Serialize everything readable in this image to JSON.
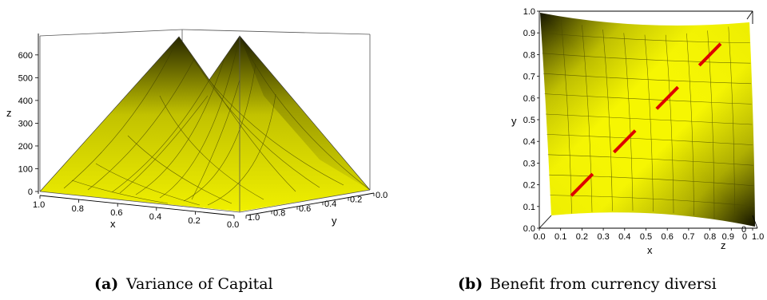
{
  "figure": {
    "panels": [
      {
        "label": "(a)",
        "caption": "Variance of Capital"
      },
      {
        "label": "(b)",
        "caption": "Benefit from currency diversi"
      }
    ]
  },
  "chart_data": [
    {
      "type": "surface3d",
      "title": "",
      "xlabel": "x",
      "ylabel": "y",
      "zlabel": "z",
      "x_ticks": [
        "1.0",
        "0.8",
        "0.6",
        "0.4",
        "0.2",
        "0.0"
      ],
      "y_ticks": [
        "1.0",
        "0.8",
        "0.6",
        "0.4",
        "0.2",
        "0.0"
      ],
      "z_ticks": [
        "0",
        "100",
        "200",
        "300",
        "400",
        "500",
        "600"
      ],
      "xlim": [
        0,
        1
      ],
      "ylim": [
        0,
        1
      ],
      "zlim": [
        0,
        680
      ],
      "surface_color": "#e8e800",
      "shadow_color": "#2a2a00",
      "peaks": [
        {
          "x": 0.5,
          "y": 0.0,
          "z": 620
        },
        {
          "x": 0.0,
          "y": 0.5,
          "z": 620
        }
      ]
    },
    {
      "type": "surface3d-top",
      "title": "",
      "xlabel": "x",
      "ylabel": "y",
      "zlabel": "z",
      "x_ticks": [
        "0.0",
        "0.1",
        "0.2",
        "0.3",
        "0.4",
        "0.5",
        "0.6",
        "0.7",
        "0.8",
        "0.9",
        "1.0"
      ],
      "y_ticks": [
        "0.0",
        "0.1",
        "0.2",
        "0.3",
        "0.4",
        "0.5",
        "0.6",
        "0.7",
        "0.8",
        "0.9",
        "1.0"
      ],
      "xlim": [
        0,
        1
      ],
      "ylim": [
        0,
        1
      ],
      "surface_color": "#f4f400",
      "shadow_color": "#111100",
      "highlight_color": "#dd0000",
      "highlight_segments": [
        {
          "x": [
            0.15,
            0.25
          ],
          "y": [
            0.15,
            0.25
          ]
        },
        {
          "x": [
            0.35,
            0.45
          ],
          "y": [
            0.35,
            0.45
          ]
        },
        {
          "x": [
            0.55,
            0.65
          ],
          "y": [
            0.55,
            0.65
          ]
        },
        {
          "x": [
            0.75,
            0.85
          ],
          "y": [
            0.75,
            0.85
          ]
        }
      ],
      "corner_tick_labels": [
        "0",
        "0",
        "1.0"
      ]
    }
  ]
}
